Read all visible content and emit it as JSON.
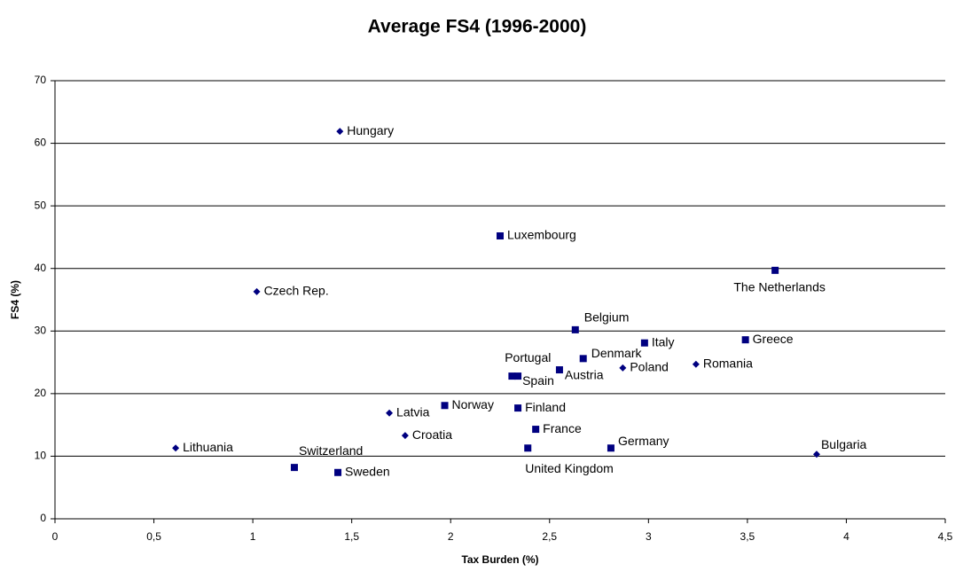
{
  "chart_data": {
    "type": "scatter",
    "title": "Average FS4 (1996-2000)",
    "x_label": "Tax Burden (%)",
    "y_label": "FS4 (%)",
    "xlim": [
      0,
      4.5
    ],
    "ylim": [
      0,
      70
    ],
    "xticks": [
      0,
      {
        "value": 0.5,
        "label": "0,5"
      },
      1,
      {
        "value": 1.5,
        "label": "1,5"
      },
      2,
      {
        "value": 2.5,
        "label": "2,5"
      },
      3,
      {
        "value": 3.5,
        "label": "3,5"
      },
      4,
      {
        "value": 4.5,
        "label": "4,5"
      }
    ],
    "yticks": [
      0,
      10,
      20,
      30,
      40,
      50,
      60,
      70
    ],
    "grid": true,
    "series": [
      {
        "marker": "diamond",
        "color": "#000080",
        "labels": [
          "Hungary",
          "Czech Rep.",
          "Lithuania",
          "Latvia",
          "Croatia",
          "Poland",
          "Romania",
          "Bulgaria"
        ],
        "x": [
          1.44,
          1.02,
          0.61,
          1.69,
          1.77,
          2.87,
          3.24,
          3.85
        ],
        "values": [
          61.9,
          36.3,
          11.3,
          16.9,
          13.3,
          24.1,
          24.7,
          10.3
        ]
      },
      {
        "marker": "square",
        "color": "#000080",
        "labels": [
          "Luxembourg",
          "The Netherlands",
          "Belgium",
          "Italy",
          "Greece",
          "Denmark",
          "Austria",
          "Portugal",
          "Spain",
          "Norway",
          "Finland",
          "France",
          "United Kingdom",
          "Germany",
          "Switzerland",
          "Sweden"
        ],
        "x": [
          2.25,
          3.64,
          2.63,
          2.98,
          3.49,
          2.67,
          2.55,
          2.31,
          2.34,
          1.97,
          2.34,
          2.43,
          2.39,
          2.81,
          1.21,
          1.43
        ],
        "values": [
          45.2,
          39.7,
          30.2,
          28.1,
          28.6,
          25.6,
          23.8,
          22.8,
          22.8,
          18.1,
          17.7,
          14.3,
          11.3,
          11.3,
          8.2,
          7.4
        ]
      }
    ]
  }
}
